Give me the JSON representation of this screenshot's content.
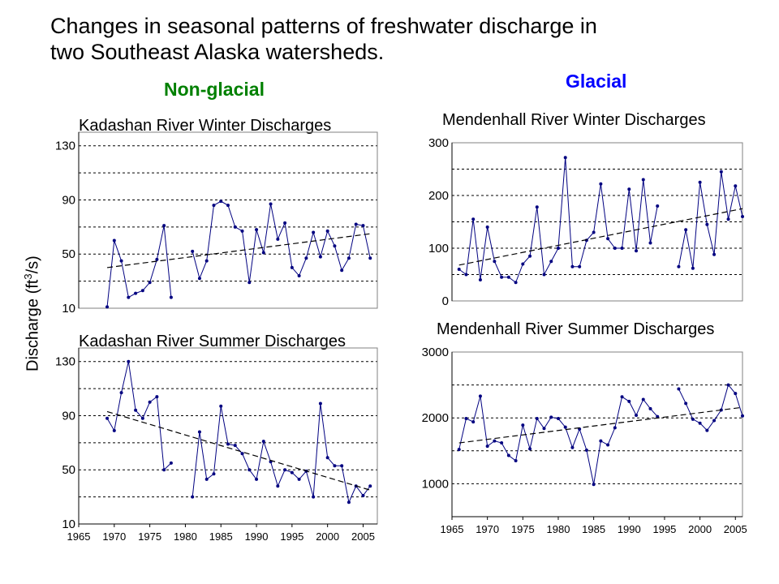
{
  "title": {
    "line1": "Changes in seasonal patterns of freshwater discharge in",
    "line2": "two Southeast Alaska watersheds."
  },
  "group_labels": {
    "non_glacial": "Non-glacial",
    "glacial": "Glacial"
  },
  "shared_ylabel": "Discharge (ft3/s)",
  "shared_ylabel_parts": {
    "pre": "Discharge (ft",
    "sup": "3",
    "post": "/s)"
  },
  "colors": {
    "series": "#000080",
    "trend": "#000000",
    "gridline": "#000000",
    "non_glacial": "#008000",
    "glacial": "#0000ff"
  },
  "chart_data": [
    {
      "id": "kadashan-winter",
      "type": "line",
      "title": "Kadashan River Winter Discharges",
      "xlabel": "",
      "ylabel": "",
      "xlim": [
        1965,
        2007
      ],
      "ylim": [
        10,
        140
      ],
      "yticks": [
        10,
        50,
        90,
        130
      ],
      "grid": "horizontal dashed",
      "show_x_ticks": false,
      "series": [
        {
          "values": [
            [
              1969,
              11
            ],
            [
              1970,
              60
            ],
            [
              1971,
              45
            ],
            [
              1972,
              18
            ],
            [
              1973,
              21
            ],
            [
              1974,
              23
            ],
            [
              1975,
              29
            ],
            [
              1976,
              46
            ],
            [
              1977,
              71
            ],
            [
              1978,
              18
            ],
            [
              1981,
              52
            ],
            [
              1982,
              32
            ],
            [
              1983,
              45
            ],
            [
              1984,
              86
            ],
            [
              1985,
              89
            ],
            [
              1986,
              86
            ],
            [
              1987,
              70
            ],
            [
              1988,
              67
            ],
            [
              1989,
              29
            ],
            [
              1990,
              68
            ],
            [
              1991,
              51
            ],
            [
              1992,
              87
            ],
            [
              1993,
              61
            ],
            [
              1994,
              73
            ],
            [
              1995,
              40
            ],
            [
              1996,
              34
            ],
            [
              1997,
              47
            ],
            [
              1998,
              66
            ],
            [
              1999,
              48
            ],
            [
              2000,
              67
            ],
            [
              2001,
              56
            ],
            [
              2002,
              38
            ],
            [
              2003,
              47
            ],
            [
              2004,
              72
            ],
            [
              2005,
              71
            ],
            [
              2006,
              47
            ]
          ]
        }
      ],
      "trend": [
        [
          1969,
          40
        ],
        [
          2006,
          65
        ]
      ]
    },
    {
      "id": "kadashan-summer",
      "type": "line",
      "title": "Kadashan River Summer Discharges",
      "xlabel": "",
      "ylabel": "",
      "xlim": [
        1965,
        2007
      ],
      "ylim": [
        10,
        140
      ],
      "yticks": [
        10,
        50,
        90,
        130
      ],
      "xticks": [
        1965,
        1970,
        1975,
        1980,
        1985,
        1990,
        1995,
        2000,
        2005
      ],
      "grid": "horizontal dashed",
      "show_x_ticks": true,
      "series": [
        {
          "values": [
            [
              1969,
              88
            ],
            [
              1970,
              79
            ],
            [
              1971,
              107
            ],
            [
              1972,
              130
            ],
            [
              1973,
              94
            ],
            [
              1974,
              88
            ],
            [
              1975,
              100
            ],
            [
              1976,
              104
            ],
            [
              1977,
              50
            ],
            [
              1978,
              55
            ],
            [
              1981,
              30
            ],
            [
              1982,
              78
            ],
            [
              1983,
              43
            ],
            [
              1984,
              47
            ],
            [
              1985,
              97
            ],
            [
              1986,
              69
            ],
            [
              1987,
              68
            ],
            [
              1988,
              62
            ],
            [
              1989,
              50
            ],
            [
              1990,
              43
            ],
            [
              1991,
              71
            ],
            [
              1992,
              56
            ],
            [
              1993,
              38
            ],
            [
              1994,
              50
            ],
            [
              1995,
              48
            ],
            [
              1996,
              43
            ],
            [
              1997,
              49
            ],
            [
              1998,
              30
            ],
            [
              1999,
              99
            ],
            [
              2000,
              59
            ],
            [
              2001,
              53
            ],
            [
              2002,
              53
            ],
            [
              2003,
              26
            ],
            [
              2004,
              38
            ],
            [
              2005,
              31
            ],
            [
              2006,
              38
            ]
          ]
        }
      ],
      "trend": [
        [
          1969,
          93
        ],
        [
          2006,
          35
        ]
      ]
    },
    {
      "id": "mendenhall-winter",
      "type": "line",
      "title": "Mendenhall River Winter Discharges",
      "xlabel": "",
      "ylabel": "",
      "xlim": [
        1965,
        2006
      ],
      "ylim": [
        0,
        300
      ],
      "yticks": [
        0,
        100,
        200,
        300
      ],
      "grid": "horizontal dashed",
      "show_x_ticks": false,
      "series": [
        {
          "values": [
            [
              1966,
              60
            ],
            [
              1967,
              50
            ],
            [
              1968,
              155
            ],
            [
              1969,
              40
            ],
            [
              1970,
              140
            ],
            [
              1971,
              75
            ],
            [
              1972,
              45
            ],
            [
              1973,
              45
            ],
            [
              1974,
              35
            ],
            [
              1975,
              70
            ],
            [
              1976,
              85
            ],
            [
              1977,
              178
            ],
            [
              1978,
              50
            ],
            [
              1979,
              75
            ],
            [
              1980,
              100
            ],
            [
              1981,
              272
            ],
            [
              1982,
              65
            ],
            [
              1983,
              65
            ],
            [
              1984,
              115
            ],
            [
              1985,
              130
            ],
            [
              1986,
              222
            ],
            [
              1987,
              118
            ],
            [
              1988,
              100
            ],
            [
              1989,
              100
            ],
            [
              1990,
              212
            ],
            [
              1991,
              95
            ],
            [
              1992,
              230
            ],
            [
              1993,
              110
            ],
            [
              1994,
              180
            ],
            [
              1997,
              65
            ],
            [
              1998,
              135
            ],
            [
              1999,
              62
            ],
            [
              2000,
              225
            ],
            [
              2001,
              145
            ],
            [
              2002,
              88
            ],
            [
              2003,
              245
            ],
            [
              2004,
              155
            ],
            [
              2005,
              218
            ],
            [
              2006,
              160
            ]
          ]
        }
      ],
      "trend": [
        [
          1966,
          68
        ],
        [
          2006,
          175
        ]
      ]
    },
    {
      "id": "mendenhall-summer",
      "type": "line",
      "title": "Mendenhall River Summer Discharges",
      "xlabel": "",
      "ylabel": "",
      "xlim": [
        1965,
        2006
      ],
      "ylim": [
        500,
        3000
      ],
      "yticks": [
        1000,
        2000,
        3000
      ],
      "xticks": [
        1965,
        1970,
        1975,
        1980,
        1985,
        1990,
        1995,
        2000,
        2005
      ],
      "grid": "horizontal dashed",
      "show_x_ticks": true,
      "series": [
        {
          "values": [
            [
              1966,
              1520
            ],
            [
              1967,
              1990
            ],
            [
              1968,
              1940
            ],
            [
              1969,
              2330
            ],
            [
              1970,
              1570
            ],
            [
              1971,
              1650
            ],
            [
              1972,
              1620
            ],
            [
              1973,
              1430
            ],
            [
              1974,
              1350
            ],
            [
              1975,
              1890
            ],
            [
              1976,
              1530
            ],
            [
              1977,
              1990
            ],
            [
              1978,
              1840
            ],
            [
              1979,
              2010
            ],
            [
              1980,
              1990
            ],
            [
              1981,
              1860
            ],
            [
              1982,
              1550
            ],
            [
              1983,
              1830
            ],
            [
              1984,
              1510
            ],
            [
              1985,
              990
            ],
            [
              1986,
              1650
            ],
            [
              1987,
              1590
            ],
            [
              1988,
              1850
            ],
            [
              1989,
              2320
            ],
            [
              1990,
              2250
            ],
            [
              1991,
              2040
            ],
            [
              1992,
              2280
            ],
            [
              1993,
              2140
            ],
            [
              1994,
              2020
            ],
            [
              1997,
              2440
            ],
            [
              1998,
              2220
            ],
            [
              1999,
              1980
            ],
            [
              2000,
              1920
            ],
            [
              2001,
              1810
            ],
            [
              2002,
              1960
            ],
            [
              2003,
              2120
            ],
            [
              2004,
              2500
            ],
            [
              2005,
              2370
            ],
            [
              2006,
              2030
            ]
          ]
        }
      ],
      "trend": [
        [
          1966,
          1620
        ],
        [
          2006,
          2160
        ]
      ]
    }
  ]
}
